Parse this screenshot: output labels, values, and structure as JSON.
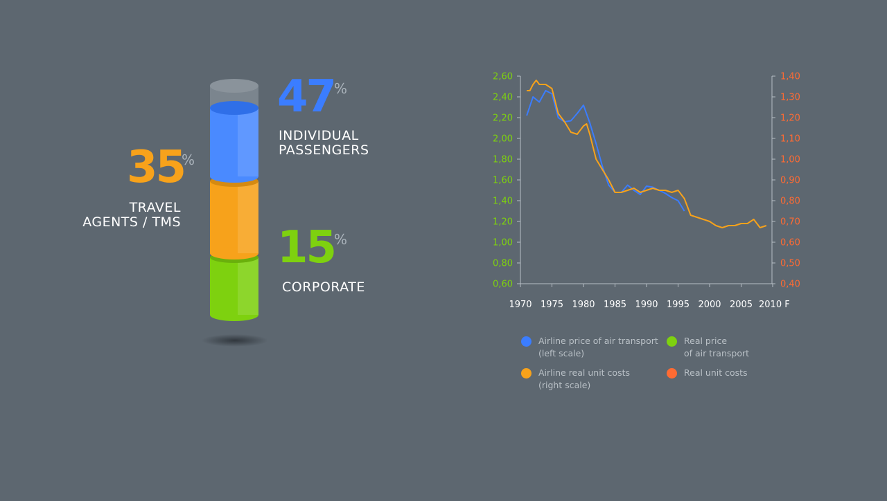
{
  "colors": {
    "blue": "#3b7dff",
    "orange": "#f7a21b",
    "green": "#7ed10f",
    "red_orange": "#ff6b33",
    "axis": "#b8bfc6",
    "background": "#5d6770"
  },
  "distribution": {
    "segments": [
      {
        "key": "individual",
        "value": "47",
        "percent_sign": "%",
        "label_lines": [
          "INDIVIDUAL",
          "PASSENGERS"
        ],
        "color": "#3b7dff"
      },
      {
        "key": "travel",
        "value": "35",
        "percent_sign": "%",
        "label_lines": [
          "TRAVEL",
          "AGENTS / TMS"
        ],
        "color": "#f7a21b"
      },
      {
        "key": "corporate",
        "value": "15",
        "percent_sign": "%",
        "label_lines": [
          "CORPORATE"
        ],
        "color": "#7ed10f"
      }
    ]
  },
  "chart_data": {
    "type": "line",
    "title": "",
    "x_ticks": [
      "1970",
      "1975",
      "1980",
      "1985",
      "1990",
      "1995",
      "2000",
      "2005",
      "2010 F"
    ],
    "xlim": [
      1970,
      2010
    ],
    "left_axis": {
      "range": [
        0.6,
        2.6
      ],
      "ticks": [
        "0,60",
        "0,80",
        "1,00",
        "1,20",
        "1,40",
        "1,60",
        "1,80",
        "2,00",
        "2,20",
        "2,40",
        "2,60"
      ],
      "color": "#7ed10f"
    },
    "right_axis": {
      "range": [
        0.4,
        1.4
      ],
      "ticks": [
        "0,40",
        "0,50",
        "0,60",
        "0,70",
        "0,80",
        "0,90",
        "1,00",
        "1,10",
        "1,20",
        "1,30",
        "1,40"
      ],
      "color": "#ff6b33"
    },
    "grid": false,
    "legend_position": "bottom",
    "series": [
      {
        "name": "Airline price of air transport (left scale)",
        "axis": "left",
        "color": "#3b7dff",
        "x": [
          1971,
          1972,
          1973,
          1974,
          1975,
          1976,
          1977,
          1978,
          1979,
          1980,
          1981,
          1982,
          1983,
          1984,
          1985,
          1986,
          1987,
          1988,
          1989,
          1990,
          1991,
          1992,
          1993,
          1994,
          1995,
          1996
        ],
        "y": [
          2.22,
          2.4,
          2.35,
          2.46,
          2.43,
          2.2,
          2.16,
          2.17,
          2.24,
          2.32,
          2.15,
          1.95,
          1.73,
          1.55,
          1.48,
          1.48,
          1.55,
          1.5,
          1.46,
          1.54,
          1.53,
          1.5,
          1.47,
          1.43,
          1.4,
          1.3
        ]
      },
      {
        "name": "Airline real unit costs (right scale)",
        "axis": "right",
        "color": "#f7a21b",
        "x": [
          1971,
          1971.5,
          1972,
          1972.5,
          1973,
          1974,
          1975,
          1976,
          1977,
          1978,
          1979,
          1980,
          1980.5,
          1981,
          1982,
          1983,
          1984,
          1985,
          1986,
          1987,
          1988,
          1989,
          1990,
          1991,
          1992,
          1993,
          1994,
          1995,
          1996,
          1997,
          1998,
          1999,
          2000,
          2001,
          2002,
          2003,
          2004,
          2005,
          2006,
          2007,
          2008,
          2009
        ],
        "y": [
          1.33,
          1.33,
          1.36,
          1.38,
          1.36,
          1.36,
          1.34,
          1.22,
          1.18,
          1.13,
          1.12,
          1.16,
          1.17,
          1.12,
          1.0,
          0.95,
          0.9,
          0.84,
          0.84,
          0.85,
          0.86,
          0.84,
          0.85,
          0.86,
          0.85,
          0.85,
          0.84,
          0.85,
          0.81,
          0.73,
          0.72,
          0.71,
          0.7,
          0.68,
          0.67,
          0.68,
          0.68,
          0.69,
          0.69,
          0.71,
          0.67,
          0.68
        ]
      }
    ],
    "legend": [
      {
        "lines": [
          "Airline price of air transport",
          "(left scale)"
        ],
        "color": "#3b7dff"
      },
      {
        "lines": [
          "Real price",
          "of air transport"
        ],
        "color": "#7ed10f"
      },
      {
        "lines": [
          "Airline real unit costs",
          "(right scale)"
        ],
        "color": "#f7a21b"
      },
      {
        "lines": [
          "Real unit costs"
        ],
        "color": "#ff6b33"
      }
    ]
  }
}
